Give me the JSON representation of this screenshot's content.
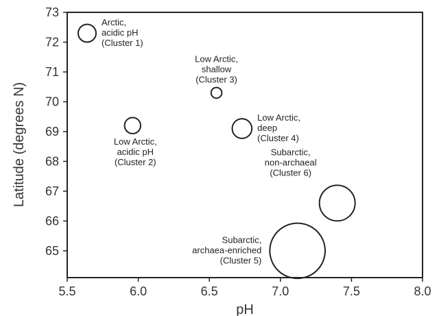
{
  "chart_data": {
    "type": "scatter",
    "title": "",
    "xlabel": "pH",
    "ylabel": "Latitude (degrees N)",
    "xlim": [
      5.5,
      8.0
    ],
    "ylim": [
      64.1,
      73.0
    ],
    "x_ticks": [
      "5.5",
      "6.0",
      "6.5",
      "7.0",
      "7.5",
      "8.0"
    ],
    "y_ticks": [
      "65",
      "66",
      "67",
      "68",
      "69",
      "70",
      "71",
      "72",
      "73"
    ],
    "grid": false,
    "marker_style": "open circle, size varies",
    "colors": {
      "marker": "#222222",
      "axes": "#222222",
      "text": "#333333"
    },
    "points": [
      {
        "x": 5.64,
        "y": 72.3,
        "size": 1.0,
        "label": [
          "Arctic,",
          "acidic pH",
          "(Cluster 1)"
        ],
        "label_pos": "right"
      },
      {
        "x": 5.96,
        "y": 69.2,
        "size": 0.9,
        "label": [
          "Low Arctic,",
          "acidic pH",
          "(Cluster 2)"
        ],
        "label_pos": "below"
      },
      {
        "x": 6.55,
        "y": 70.3,
        "size": 0.6,
        "label": [
          "Low Arctic,",
          "shallow",
          "(Cluster 3)"
        ],
        "label_pos": "above"
      },
      {
        "x": 6.73,
        "y": 69.1,
        "size": 1.1,
        "label": [
          "Low Arctic,",
          "deep",
          "(Cluster 4)"
        ],
        "label_pos": "right"
      },
      {
        "x": 7.12,
        "y": 65.0,
        "size": 3.1,
        "label": [
          "Subarctic,",
          "archaea-enriched",
          "(Cluster 5)"
        ],
        "label_pos": "left"
      },
      {
        "x": 7.4,
        "y": 66.6,
        "size": 2.0,
        "label": [
          "Subarctic,",
          "non-archaeal",
          "(Cluster 6)"
        ],
        "label_pos": "upper-left"
      }
    ]
  }
}
